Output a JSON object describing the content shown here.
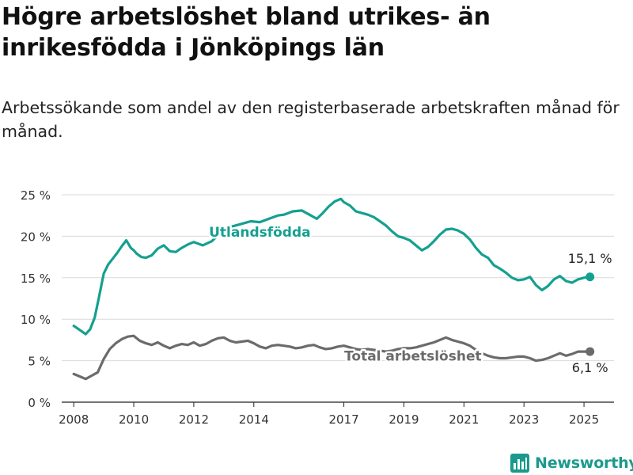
{
  "title": "Högre arbetslöshet bland utrikes- än inrikesfödda i Jönköpings län",
  "subtitle": "Arbetssökande som andel av den registerbaserade arbetskraften månad för månad.",
  "brand": {
    "name": "Newsworthy",
    "logo_icon": "newsworthy-bar-chart-logo-icon"
  },
  "colors": {
    "utlandsfodda": "#14a090",
    "total": "#6b6b6b",
    "grid": "#d9d9d9"
  },
  "chart_data": {
    "type": "line",
    "x_unit": "year",
    "xlim": [
      2007.6,
      2026.0
    ],
    "ylim": [
      0,
      25
    ],
    "y_ticks": [
      0,
      5,
      10,
      15,
      20,
      25
    ],
    "y_tick_labels": [
      "0 %",
      "5 %",
      "10 %",
      "15 %",
      "20 %",
      "25 %"
    ],
    "x_ticks": [
      2008,
      2010,
      2012,
      2014,
      2017,
      2019,
      2021,
      2023,
      2025
    ],
    "x_tick_labels": [
      "2008",
      "2010",
      "2012",
      "2014",
      "2017",
      "2019",
      "2021",
      "2023",
      "2025"
    ],
    "grid": "horizontal",
    "series": [
      {
        "name": "Utlandsfödda",
        "color": "#14a090",
        "end_label": "15,1 %",
        "x": [
          2008.0,
          2008.2,
          2008.4,
          2008.55,
          2008.7,
          2008.85,
          2009.0,
          2009.15,
          2009.3,
          2009.45,
          2009.6,
          2009.75,
          2009.9,
          2010.0,
          2010.1,
          2010.25,
          2010.4,
          2010.6,
          2010.8,
          2011.0,
          2011.2,
          2011.4,
          2011.6,
          2011.8,
          2012.0,
          2012.3,
          2012.6,
          2012.8,
          2013.0,
          2013.3,
          2013.6,
          2013.9,
          2014.2,
          2014.5,
          2014.8,
          2015.0,
          2015.3,
          2015.6,
          2015.9,
          2016.1,
          2016.3,
          2016.5,
          2016.7,
          2016.9,
          2017.0,
          2017.2,
          2017.4,
          2017.6,
          2017.8,
          2018.0,
          2018.2,
          2018.4,
          2018.6,
          2018.8,
          2019.0,
          2019.2,
          2019.4,
          2019.6,
          2019.8,
          2020.0,
          2020.2,
          2020.4,
          2020.6,
          2020.8,
          2021.0,
          2021.2,
          2021.4,
          2021.6,
          2021.8,
          2022.0,
          2022.2,
          2022.4,
          2022.6,
          2022.8,
          2023.0,
          2023.2,
          2023.4,
          2023.6,
          2023.8,
          2024.0,
          2024.2,
          2024.4,
          2024.6,
          2024.8,
          2025.0,
          2025.2
        ],
        "y": [
          9.2,
          8.7,
          8.2,
          8.8,
          10.2,
          12.8,
          15.5,
          16.6,
          17.3,
          18.0,
          18.8,
          19.5,
          18.6,
          18.3,
          17.9,
          17.5,
          17.4,
          17.7,
          18.5,
          18.9,
          18.2,
          18.1,
          18.6,
          19.0,
          19.3,
          18.9,
          19.4,
          20.1,
          20.8,
          21.2,
          21.5,
          21.8,
          21.7,
          22.1,
          22.5,
          22.6,
          23.0,
          23.1,
          22.5,
          22.1,
          22.8,
          23.6,
          24.2,
          24.5,
          24.1,
          23.7,
          23.0,
          22.8,
          22.6,
          22.3,
          21.8,
          21.3,
          20.6,
          20.0,
          19.8,
          19.5,
          18.9,
          18.3,
          18.7,
          19.4,
          20.2,
          20.8,
          20.9,
          20.7,
          20.3,
          19.6,
          18.6,
          17.8,
          17.4,
          16.5,
          16.1,
          15.6,
          15.0,
          14.7,
          14.8,
          15.1,
          14.1,
          13.5,
          14.0,
          14.8,
          15.2,
          14.6,
          14.4,
          14.8,
          15.0,
          15.1
        ]
      },
      {
        "name": "Total arbetslöshet",
        "color": "#6b6b6b",
        "end_label": "6,1 %",
        "x": [
          2008.0,
          2008.2,
          2008.4,
          2008.6,
          2008.8,
          2009.0,
          2009.2,
          2009.4,
          2009.6,
          2009.8,
          2010.0,
          2010.2,
          2010.4,
          2010.6,
          2010.8,
          2011.0,
          2011.2,
          2011.4,
          2011.6,
          2011.8,
          2012.0,
          2012.2,
          2012.4,
          2012.6,
          2012.8,
          2013.0,
          2013.2,
          2013.4,
          2013.6,
          2013.8,
          2014.0,
          2014.2,
          2014.4,
          2014.6,
          2014.8,
          2015.0,
          2015.2,
          2015.4,
          2015.6,
          2015.8,
          2016.0,
          2016.2,
          2016.4,
          2016.6,
          2016.8,
          2017.0,
          2017.2,
          2017.4,
          2017.6,
          2017.8,
          2018.0,
          2018.2,
          2018.4,
          2018.6,
          2018.8,
          2019.0,
          2019.2,
          2019.4,
          2019.6,
          2019.8,
          2020.0,
          2020.2,
          2020.4,
          2020.6,
          2020.8,
          2021.0,
          2021.2,
          2021.4,
          2021.6,
          2021.8,
          2022.0,
          2022.2,
          2022.4,
          2022.6,
          2022.8,
          2023.0,
          2023.2,
          2023.4,
          2023.6,
          2023.8,
          2024.0,
          2024.2,
          2024.4,
          2024.6,
          2024.8,
          2025.0,
          2025.2
        ],
        "y": [
          3.4,
          3.1,
          2.8,
          3.2,
          3.6,
          5.2,
          6.4,
          7.1,
          7.6,
          7.9,
          8.0,
          7.4,
          7.1,
          6.9,
          7.2,
          6.8,
          6.5,
          6.8,
          7.0,
          6.9,
          7.2,
          6.8,
          7.0,
          7.4,
          7.7,
          7.8,
          7.4,
          7.2,
          7.3,
          7.4,
          7.1,
          6.7,
          6.5,
          6.8,
          6.9,
          6.8,
          6.7,
          6.5,
          6.6,
          6.8,
          6.9,
          6.6,
          6.4,
          6.5,
          6.7,
          6.8,
          6.6,
          6.4,
          6.3,
          6.4,
          6.3,
          6.2,
          6.1,
          6.2,
          6.4,
          6.5,
          6.5,
          6.6,
          6.8,
          7.0,
          7.2,
          7.5,
          7.8,
          7.5,
          7.3,
          7.1,
          6.8,
          6.3,
          5.9,
          5.6,
          5.4,
          5.3,
          5.3,
          5.4,
          5.5,
          5.5,
          5.3,
          5.0,
          5.1,
          5.3,
          5.6,
          5.9,
          5.6,
          5.8,
          6.1,
          6.1,
          6.1
        ]
      }
    ],
    "annotations": [
      {
        "text": "Utlandsfödda",
        "series": "Utlandsfödda",
        "x": 2014.2,
        "y": 20.5
      },
      {
        "text": "Total arbetslöshet",
        "series": "Total arbetslöshet",
        "x": 2019.3,
        "y": 5.6
      }
    ]
  }
}
